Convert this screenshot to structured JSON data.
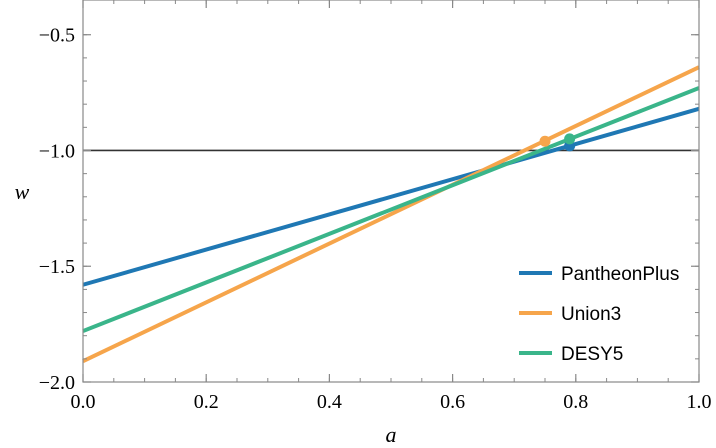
{
  "chart_data": {
    "type": "line",
    "title": "",
    "xlabel": "a",
    "ylabel": "w",
    "xlim": [
      0.0,
      1.0
    ],
    "ylim": [
      -2.0,
      -0.35
    ],
    "x_ticks": [
      0.0,
      0.2,
      0.4,
      0.6,
      0.8,
      1.0
    ],
    "x_tick_labels": [
      "0.0",
      "0.2",
      "0.4",
      "0.6",
      "0.8",
      "1.0"
    ],
    "y_ticks": [
      -2.0,
      -1.5,
      -1.0,
      -0.5
    ],
    "y_tick_labels": [
      "−2.0",
      "−1.5",
      "−1.0",
      "−0.5"
    ],
    "reference_line": {
      "y": -1.0,
      "color": "#333333"
    },
    "grid": false,
    "legend_position": "bottom-right",
    "series": [
      {
        "name": "PantheonPlus",
        "color": "#1f78b4",
        "x": [
          0.0,
          1.0
        ],
        "y": [
          -1.58,
          -0.82
        ],
        "marker": {
          "x": 0.79,
          "y": -0.98
        }
      },
      {
        "name": "Union3",
        "color": "#f6a54b",
        "x": [
          0.0,
          1.0
        ],
        "y": [
          -1.91,
          -0.64
        ],
        "marker": {
          "x": 0.75,
          "y": -0.96
        }
      },
      {
        "name": "DESY5",
        "color": "#3ab58a",
        "x": [
          0.0,
          1.0
        ],
        "y": [
          -1.78,
          -0.73
        ],
        "marker": {
          "x": 0.79,
          "y": -0.95
        }
      }
    ]
  }
}
